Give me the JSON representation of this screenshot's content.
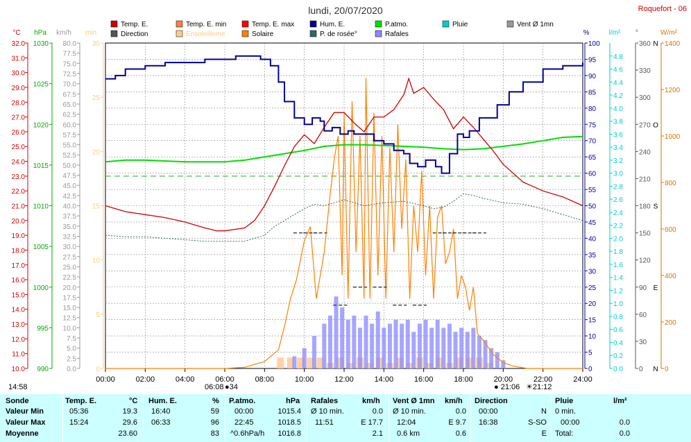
{
  "page": {
    "station": "Roquefort - 06",
    "date": "lundi, 20/07/2020"
  },
  "legend": [
    {
      "label": "Temp. E.",
      "color": "#cc0000"
    },
    {
      "label": "Temp. E. min",
      "color": "#ff8040"
    },
    {
      "label": "Temp. E. max",
      "color": "#ff0000"
    },
    {
      "label": "Hum. E.",
      "color": "#000099"
    },
    {
      "label": "P.atmo.",
      "color": "#00dd00"
    },
    {
      "label": "Pluie",
      "color": "#00cccc"
    },
    {
      "label": "Vent Ø 1mn",
      "color": "#999999"
    },
    {
      "label": "Direction",
      "color": "#555555"
    },
    {
      "label": "Ensoleilleme",
      "color": "#ffcc88"
    },
    {
      "label": "Solaire",
      "color": "#ff8000"
    },
    {
      "label": "P. de rosée°",
      "color": "#336666"
    },
    {
      "label": "Rafales",
      "color": "#8888ff"
    }
  ],
  "colors": {
    "temp": "#cc0000",
    "hpa": "#00aa00",
    "kmh": "#999999",
    "min": "#ffcc77",
    "hum": "#000099",
    "rain": "#00cccc",
    "deg": "#555555",
    "wm2": "#cc7700",
    "solar": "#ff8000",
    "dew": "#336666",
    "gust": "#8888ff",
    "sunshine": "#ffcc99",
    "pressure": "#00dd00",
    "dirmark": "#444444",
    "grid": "#888888"
  },
  "chart_data": {
    "type": "line",
    "x_unit": "heure",
    "x_ticks": [
      "00:00",
      "02:00",
      "04:00",
      "06:00",
      "08:00",
      "10:00",
      "12:00",
      "14:00",
      "16:00",
      "18:00",
      "20:00",
      "22:00",
      "24:00"
    ],
    "xlim": [
      0,
      24
    ],
    "axes": [
      {
        "unit": "°C",
        "range": [
          10,
          32
        ],
        "ticks": [
          "10.0",
          "11.0",
          "12.0",
          "13.0",
          "14.0",
          "15.0",
          "16.0",
          "17.0",
          "18.0",
          "19.0",
          "20.0",
          "21.0",
          "22.0",
          "23.0",
          "24.0",
          "25.0",
          "26.0",
          "27.0",
          "28.0",
          "29.0",
          "30.0",
          "31.0",
          "32.0"
        ]
      },
      {
        "unit": "hPa",
        "range": [
          990,
          1030
        ],
        "ticks": [
          "990",
          "995",
          "1000",
          "1005",
          "1010",
          "1015",
          "1020",
          "1025",
          "1030"
        ]
      },
      {
        "unit": "km/h",
        "range": [
          0,
          80
        ],
        "ticks": [
          "0.0",
          "2.5",
          "5.0",
          "7.5",
          "10.0",
          "12.5",
          "15.0",
          "17.5",
          "20.0",
          "22.5",
          "25.0",
          "27.5",
          "30.0",
          "32.5",
          "35.0",
          "37.5",
          "40.0",
          "42.5",
          "45.0",
          "47.5",
          "50.0",
          "52.5",
          "55.0",
          "57.5",
          "60.0",
          "62.5",
          "65.0",
          "67.5",
          "70.0",
          "72.5",
          "75.0",
          "77.5",
          "80.0"
        ]
      },
      {
        "unit": "min",
        "range": [
          0,
          30
        ],
        "ticks": [
          "0",
          "5",
          "10",
          "15",
          "20",
          "25",
          "30"
        ]
      },
      {
        "unit": "%",
        "range": [
          0,
          100
        ],
        "ticks": [
          "0",
          "5",
          "10",
          "15",
          "20",
          "25",
          "30",
          "35",
          "40",
          "45",
          "50",
          "55",
          "60",
          "65",
          "70",
          "75",
          "80",
          "85",
          "90",
          "95",
          "100"
        ]
      },
      {
        "unit": "l/m²",
        "range": [
          0,
          5
        ],
        "ticks": [
          "0.0",
          "0.2",
          "0.4",
          "0.6",
          "0.8",
          "1.0",
          "1.2",
          "1.4",
          "1.6",
          "1.8",
          "2.0",
          "2.2",
          "2.4",
          "2.6",
          "2.8",
          "3.0",
          "3.2",
          "3.4",
          "3.6",
          "3.8",
          "4.0",
          "4.2",
          "4.4",
          "4.6",
          "4.8"
        ]
      },
      {
        "unit": "°",
        "range": [
          0,
          360
        ],
        "ticks": [
          "0",
          "30",
          "60",
          "90",
          "120",
          "150",
          "180",
          "210",
          "240",
          "270",
          "300",
          "330",
          "360"
        ],
        "cardinals": {
          "0": "N",
          "90": "E",
          "180": "S",
          "270": "O",
          "360": "N"
        }
      },
      {
        "unit": "W/m²",
        "range": [
          0,
          1400
        ],
        "ticks": [
          "0",
          "200",
          "400",
          "600",
          "800",
          "1000",
          "1200",
          "1400"
        ]
      }
    ],
    "series": [
      {
        "name": "Temp. E.",
        "axis": "°C",
        "x": [
          0,
          1,
          2,
          3,
          4,
          5,
          5.6,
          6,
          7,
          7.5,
          8,
          8.5,
          9,
          9.5,
          10,
          10.5,
          11,
          11.5,
          12,
          12.5,
          13,
          13.5,
          14,
          14.5,
          15,
          15.25,
          15.5,
          16,
          16.5,
          17,
          17.5,
          18,
          18.5,
          19,
          19.5,
          20,
          21,
          22,
          23,
          24
        ],
        "y": [
          21.0,
          20.6,
          20.4,
          20.2,
          19.9,
          19.5,
          19.3,
          19.3,
          19.5,
          20.0,
          21.0,
          22.3,
          23.7,
          25.0,
          25.8,
          25.2,
          26.3,
          27.3,
          27.3,
          26.6,
          26.0,
          27.0,
          27.0,
          27.5,
          28.5,
          29.6,
          28.6,
          29.0,
          28.2,
          27.5,
          26.2,
          27.0,
          26.3,
          25.5,
          24.7,
          23.8,
          22.6,
          22.0,
          21.6,
          21.0
        ]
      },
      {
        "name": "Hum. E.",
        "axis": "%",
        "x": [
          0,
          0.5,
          1,
          2,
          3,
          4,
          5,
          6,
          6.55,
          7,
          7.8,
          8.3,
          8.7,
          9,
          9.5,
          10,
          10.4,
          10.8,
          11,
          11.4,
          11.8,
          12.2,
          12.5,
          13,
          13.5,
          14,
          14.5,
          15,
          15.3,
          15.7,
          16.1,
          16.6,
          16.9,
          17.3,
          17.7,
          18,
          18.3,
          18.8,
          19.2,
          19.7,
          20.3,
          21,
          22,
          23,
          24
        ],
        "y": [
          89,
          90,
          92,
          93,
          94,
          94,
          95,
          95,
          96,
          96,
          95,
          93,
          88,
          82,
          77,
          75,
          77,
          76,
          73,
          74,
          72,
          73,
          72,
          72,
          70,
          69,
          67,
          66,
          63,
          62,
          64,
          62,
          60,
          66,
          72,
          71,
          73,
          77,
          77,
          81,
          85,
          88,
          92,
          93,
          94
        ]
      },
      {
        "name": "P.atmo.",
        "axis": "hPa",
        "x": [
          0,
          1,
          2,
          3,
          4,
          5,
          6,
          7,
          8,
          9,
          10,
          11,
          12,
          13,
          14,
          15,
          16,
          17,
          18,
          19,
          20,
          21,
          22,
          23,
          24
        ],
        "y": [
          1015.4,
          1015.6,
          1015.6,
          1015.5,
          1015.4,
          1015.4,
          1015.4,
          1015.6,
          1016.0,
          1016.4,
          1016.8,
          1017.3,
          1017.5,
          1017.5,
          1017.4,
          1017.3,
          1017.2,
          1017.0,
          1016.9,
          1017.0,
          1017.3,
          1017.6,
          1018.0,
          1018.4,
          1018.5
        ]
      },
      {
        "name": "P. de rosée°",
        "axis": "°C",
        "x": [
          0,
          1,
          2,
          3,
          4,
          5,
          6,
          7,
          8,
          8.5,
          9,
          9.5,
          10,
          10.5,
          11,
          11.5,
          12,
          12.5,
          13,
          14,
          15,
          16,
          16.5,
          17,
          17.5,
          18,
          18.5,
          19,
          20,
          21,
          22,
          23,
          24
        ],
        "y": [
          19.0,
          18.9,
          18.9,
          18.8,
          18.7,
          18.6,
          18.6,
          18.6,
          19.0,
          19.6,
          20.0,
          20.4,
          20.8,
          21.1,
          21.0,
          21.2,
          21.4,
          21.2,
          21.0,
          21.2,
          21.3,
          21.0,
          20.8,
          20.9,
          21.3,
          21.8,
          21.7,
          21.5,
          21.2,
          21.1,
          20.8,
          20.4,
          20.0
        ]
      },
      {
        "name": "Solaire",
        "axis": "W/m²",
        "x": [
          0,
          6,
          7,
          8,
          8.7,
          9,
          9.3,
          9.6,
          10,
          10.3,
          10.6,
          11,
          11.3,
          11.5,
          11.7,
          11.9,
          12,
          12.2,
          12.4,
          12.6,
          12.8,
          13,
          13.1,
          13.3,
          13.5,
          13.7,
          13.9,
          14.1,
          14.3,
          14.5,
          14.7,
          14.9,
          15.1,
          15.3,
          15.5,
          15.7,
          15.9,
          16.1,
          16.3,
          16.5,
          16.7,
          16.9,
          17.1,
          17.3,
          17.5,
          17.7,
          17.9,
          18.1,
          18.3,
          18.5,
          18.7,
          19,
          19.5,
          20,
          20.5,
          21,
          21.2,
          24
        ],
        "y": [
          0,
          0,
          5,
          30,
          80,
          180,
          300,
          380,
          550,
          610,
          300,
          500,
          750,
          900,
          1000,
          400,
          1100,
          300,
          1150,
          500,
          1000,
          300,
          1250,
          300,
          1100,
          400,
          1000,
          300,
          950,
          500,
          1050,
          600,
          900,
          300,
          700,
          500,
          850,
          400,
          700,
          300,
          650,
          700,
          450,
          500,
          600,
          300,
          400,
          350,
          250,
          350,
          150,
          120,
          60,
          25,
          10,
          3,
          0,
          0
        ]
      },
      {
        "name": "Rafales",
        "axis": "km/h",
        "x": [
          0,
          9.3,
          9.5,
          10,
          10.5,
          11,
          11.3,
          11.6,
          11.9,
          12.2,
          12.5,
          12.8,
          13.1,
          13.4,
          13.7,
          14,
          14.3,
          14.6,
          14.9,
          15.2,
          15.5,
          15.8,
          16.1,
          16.4,
          16.7,
          17,
          17.3,
          17.6,
          17.9,
          18.2,
          18.5,
          18.8,
          19.1,
          19.4,
          19.7,
          20,
          20.3,
          24
        ],
        "y": [
          0,
          0,
          3,
          5,
          8,
          11,
          13,
          17.7,
          15,
          12,
          13,
          10,
          13,
          11,
          14,
          10,
          11,
          12,
          11,
          12,
          9,
          11,
          12,
          10,
          12,
          10,
          11,
          9,
          10,
          9,
          10,
          8,
          7,
          5,
          4,
          2,
          0,
          0
        ]
      },
      {
        "name": "Ensoleilleme",
        "axis": "min",
        "x": [
          8.8,
          9.3,
          9.8,
          10.3,
          10.8,
          11.3,
          11.8,
          12.3,
          12.8,
          13.3,
          13.8,
          14.3,
          14.8,
          15.3,
          15.8,
          16.3,
          16.8,
          17.3,
          17.8,
          18.3,
          18.8,
          19.3
        ],
        "y": [
          1,
          1,
          1,
          1,
          1,
          0.5,
          1,
          0.5,
          1,
          0.5,
          1,
          0.5,
          1,
          0.5,
          1,
          0.5,
          1,
          0.5,
          1,
          1,
          1,
          0.5
        ]
      },
      {
        "name": "Direction",
        "axis": "°",
        "x": [
          9.8,
          10.3,
          10.8,
          11.8,
          12.8,
          13.8,
          14.8,
          15.8,
          16.8,
          17.3,
          17.8,
          18.3,
          18.8
        ],
        "y": [
          150,
          150,
          150,
          70,
          90,
          90,
          70,
          70,
          150,
          150,
          150,
          150,
          150
        ]
      }
    ],
    "reference_line": {
      "axis": "°C",
      "value": 23.0
    }
  },
  "time_markers": {
    "start": "14:58",
    "sunrise": "06:08",
    "sunrise_dot": "●34",
    "moon": "● 21:06",
    "sunset": "☀21:12"
  },
  "stats": {
    "headers": {
      "sonde": "Sonde",
      "temp": "Temp. E.",
      "temp_unit": "°C",
      "hum": "Hum. E.",
      "hum_unit": "%",
      "patmo": "P.atmo.",
      "patmo_unit": "hPa",
      "rafales": "Rafales",
      "rafales_unit": "km/h",
      "vent": "Vent Ø 1mn",
      "vent_unit": "km/h",
      "direction": "Direction",
      "pluie": "Pluie",
      "pluie_unit": "l/m²"
    },
    "rows": {
      "min": {
        "label": "Valeur Min",
        "temp_time": "05:36",
        "temp": "19.3",
        "hum_time": "16:40",
        "hum": "59",
        "patmo_time": "00:00",
        "patmo": "1015.4",
        "raf_note": "Ø 10 min.",
        "raf": "0.0",
        "vent_note": "Ø 10 min.",
        "vent": "0.0",
        "dir_time": "00:00",
        "dir": "N",
        "pluie_note": "0 min."
      },
      "max": {
        "label": "Valeur Max",
        "temp_time": "15:24",
        "temp": "29.6",
        "hum_time": "06:33",
        "hum": "96",
        "patmo_time": "22:45",
        "patmo": "1018.5",
        "raf_time": "11:51",
        "raf": "E 17.7",
        "vent_time": "12:04",
        "vent": "E 9.7",
        "dir_time": "16:38",
        "dir": "S-SO",
        "pluie_time": "00:00",
        "pluie": "0.0"
      },
      "avg": {
        "label": "Moyenne",
        "temp": "23.60",
        "hum": "83",
        "patmo_note": "^0.6hPa/h",
        "patmo": "1016.8",
        "raf": "2.1",
        "vent_note": "0.6 km",
        "vent": "0.6",
        "dir": "E",
        "pluie_note": "Total:",
        "pluie": "0.0"
      }
    }
  }
}
